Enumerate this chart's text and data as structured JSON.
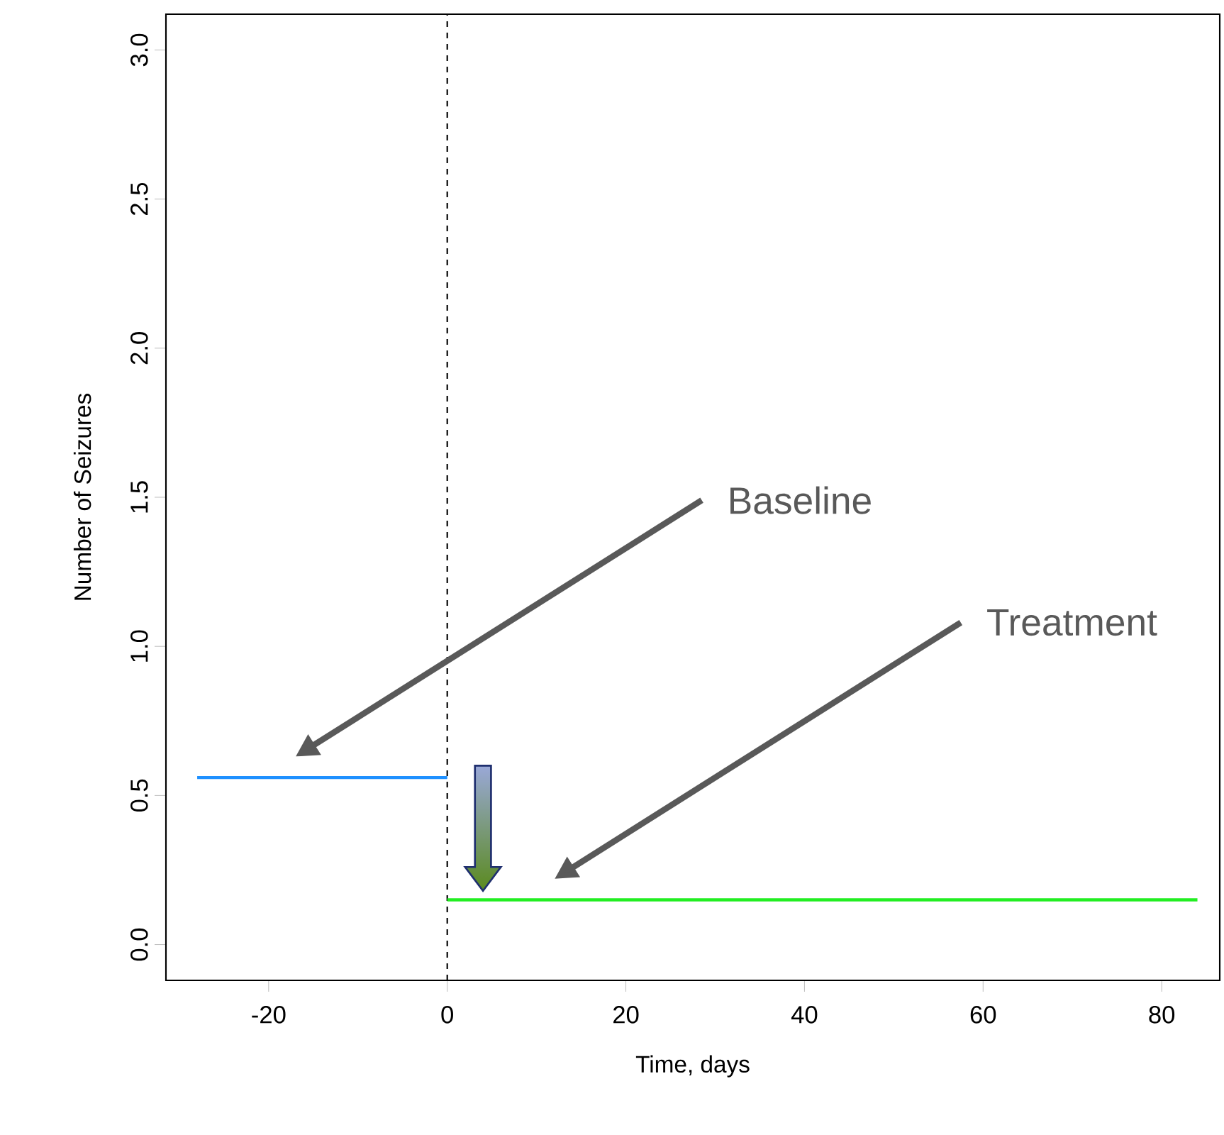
{
  "chart_data": {
    "type": "line",
    "xlabel": "Time, days",
    "ylabel": "Number of Seizures",
    "series": [
      {
        "x": [
          -28,
          0
        ],
        "values": [
          0.56,
          0.56
        ],
        "color": "#1e90ff"
      },
      {
        "x": [
          0,
          84
        ],
        "values": [
          0.15,
          0.15
        ],
        "color": "#22ee22"
      }
    ],
    "xlim": [
      -31.5,
      86.5
    ],
    "ylim": [
      -0.12,
      3.12
    ],
    "xticks": [
      -20,
      0,
      20,
      40,
      60,
      80
    ],
    "yticks": [
      {
        "value": 0,
        "label": "0.0"
      },
      {
        "value": 0.5,
        "label": "0.5"
      },
      {
        "value": 1,
        "label": "1.0"
      },
      {
        "value": 1.5,
        "label": "1.5"
      },
      {
        "value": 2,
        "label": "2.0"
      },
      {
        "value": 2.5,
        "label": "2.5"
      },
      {
        "value": 3,
        "label": "3.0"
      }
    ],
    "ref_lines": [
      {
        "axis": "x",
        "value": 0,
        "color": "#000000",
        "line_style": "dashed"
      }
    ],
    "annotations": [
      "Baseline",
      "Treatment"
    ]
  }
}
